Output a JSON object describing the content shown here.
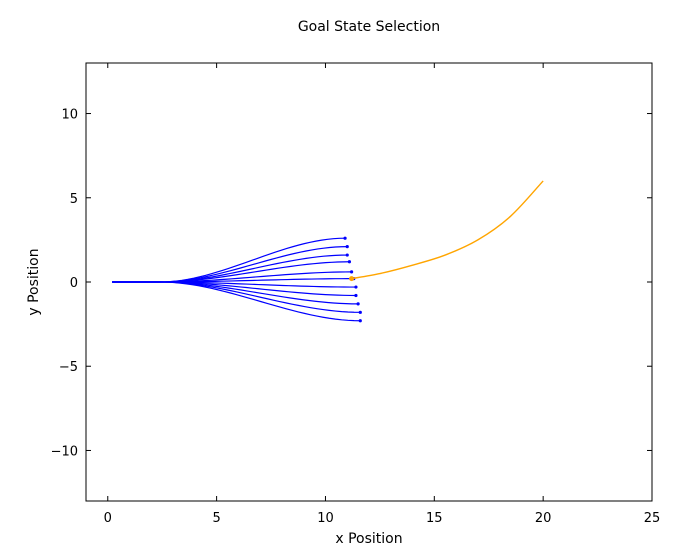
{
  "chart_data": {
    "type": "line",
    "title": "Goal State Selection",
    "xlabel": "x Position",
    "ylabel": "y Position",
    "xlim": [
      -1,
      25
    ],
    "ylim": [
      -13,
      13
    ],
    "xticks": [
      0,
      5,
      10,
      15,
      20,
      25
    ],
    "yticks": [
      -10,
      -5,
      0,
      5,
      10
    ],
    "xtick_labels": [
      "0",
      "5",
      "10",
      "15",
      "20",
      "25"
    ],
    "ytick_labels": [
      "−10",
      "−5",
      "0",
      "5",
      "10"
    ],
    "grid": false,
    "colors": {
      "candidates": "#0000ff",
      "reference": "#ffa500",
      "axes": "#000000"
    },
    "candidate_endpoints": [
      {
        "x": 10.9,
        "y": 2.6
      },
      {
        "x": 11.0,
        "y": 2.1
      },
      {
        "x": 11.0,
        "y": 1.6
      },
      {
        "x": 11.1,
        "y": 1.2
      },
      {
        "x": 11.2,
        "y": 0.6
      },
      {
        "x": 11.3,
        "y": 0.2
      },
      {
        "x": 11.4,
        "y": -0.3
      },
      {
        "x": 11.4,
        "y": -0.8
      },
      {
        "x": 11.5,
        "y": -1.3
      },
      {
        "x": 11.6,
        "y": -1.8
      },
      {
        "x": 11.6,
        "y": -2.3
      }
    ],
    "candidate_start": {
      "x": 0.2,
      "y": 0.0
    },
    "reference_path": [
      {
        "x": 11.2,
        "y": 0.2
      },
      {
        "x": 12.5,
        "y": 0.5
      },
      {
        "x": 14.0,
        "y": 1.0
      },
      {
        "x": 15.5,
        "y": 1.6
      },
      {
        "x": 17.0,
        "y": 2.5
      },
      {
        "x": 18.5,
        "y": 3.9
      },
      {
        "x": 20.0,
        "y": 6.0
      }
    ]
  }
}
